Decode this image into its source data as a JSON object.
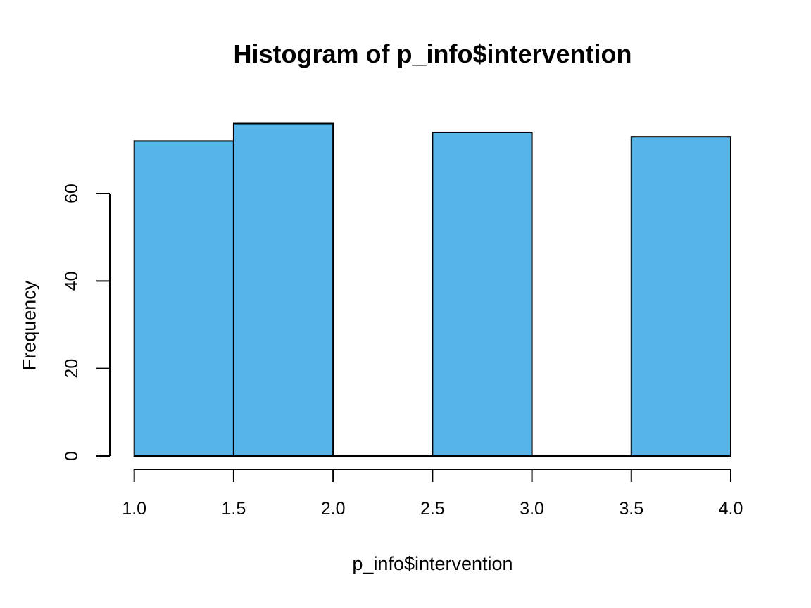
{
  "chart_data": {
    "type": "bar",
    "subtype": "histogram",
    "title": "Histogram of p_info$intervention",
    "xlabel": "p_info$intervention",
    "ylabel": "Frequency",
    "bins": [
      {
        "from": 1.0,
        "to": 1.5,
        "count": 72
      },
      {
        "from": 1.5,
        "to": 2.0,
        "count": 76
      },
      {
        "from": 2.0,
        "to": 2.5,
        "count": 0
      },
      {
        "from": 2.5,
        "to": 3.0,
        "count": 74
      },
      {
        "from": 3.0,
        "to": 3.5,
        "count": 0
      },
      {
        "from": 3.5,
        "to": 4.0,
        "count": 73
      }
    ],
    "x_tick_values": [
      1.0,
      1.5,
      2.0,
      2.5,
      3.0,
      3.5,
      4.0
    ],
    "x_tick_labels": [
      "1.0",
      "1.5",
      "2.0",
      "2.5",
      "3.0",
      "3.5",
      "4.0"
    ],
    "y_tick_values": [
      0,
      20,
      40,
      60
    ],
    "y_tick_labels": [
      "0",
      "20",
      "40",
      "60"
    ],
    "xlim": [
      1.0,
      4.0
    ],
    "y_axis_range": [
      0,
      60
    ],
    "grid": false,
    "legend": null,
    "bar_fill": "#56B4E9",
    "bar_stroke": "#000000",
    "axis_color": "#000000",
    "background": "#FFFFFF"
  }
}
